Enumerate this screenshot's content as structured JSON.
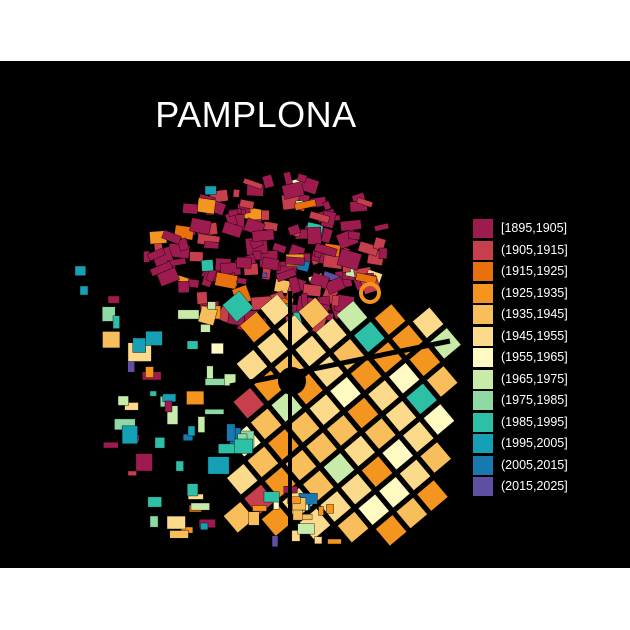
{
  "map": {
    "title": "PAMPLONA",
    "background": "#000000",
    "legend_position": "right",
    "legend": [
      {
        "label": "[1895,1905]",
        "color": "#9E1B4F"
      },
      {
        "label": "(1905,1915]",
        "color": "#C73E4C"
      },
      {
        "label": "(1915,1925]",
        "color": "#E8710D"
      },
      {
        "label": "(1925,1935]",
        "color": "#F3951F"
      },
      {
        "label": "(1935,1945]",
        "color": "#F9BE5C"
      },
      {
        "label": "(1945,1955]",
        "color": "#FBDA8C"
      },
      {
        "label": "(1955,1965]",
        "color": "#FFFAC2"
      },
      {
        "label": "(1965,1975]",
        "color": "#C9EBAA"
      },
      {
        "label": "(1975,1985]",
        "color": "#8ED9A4"
      },
      {
        "label": "(1985,1995]",
        "color": "#2EC0A6"
      },
      {
        "label": "(1995,2005]",
        "color": "#15A0B5"
      },
      {
        "label": "(2005,2015]",
        "color": "#1878B0"
      },
      {
        "label": "(2015,2025]",
        "color": "#5E4FA2"
      }
    ]
  }
}
